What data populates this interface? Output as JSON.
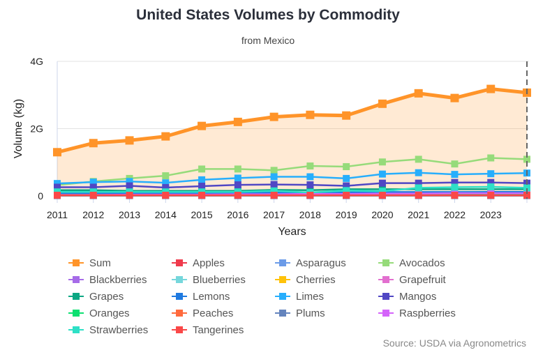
{
  "chart_data": {
    "type": "line",
    "title": "United States Volumes by Commodity",
    "subtitle": "from Mexico",
    "xlabel": "Years",
    "ylabel": "Volume (kg)",
    "ylim": [
      0,
      4000000000
    ],
    "yticks": [
      {
        "value": 0,
        "label": "0"
      },
      {
        "value": 2000000000,
        "label": "2G"
      },
      {
        "value": 4000000000,
        "label": "4G"
      }
    ],
    "x": [
      2011,
      2012,
      2013,
      2014,
      2015,
      2016,
      2017,
      2018,
      2019,
      2020,
      2021,
      2022,
      2023,
      2024
    ],
    "xtick_labels": [
      "2011",
      "2012",
      "2013",
      "2014",
      "2015",
      "2016",
      "2017",
      "2018",
      "2019",
      "2020",
      "2021",
      "2022",
      "2023"
    ],
    "grid": true,
    "legend_placement": "bottom",
    "series": [
      {
        "name": "Sum",
        "color": "#ff9429",
        "area": true,
        "values": [
          1.3,
          1.57,
          1.65,
          1.77,
          2.08,
          2.2,
          2.35,
          2.41,
          2.39,
          2.74,
          3.05,
          2.91,
          3.18,
          3.07
        ]
      },
      {
        "name": "Apples",
        "color": "#ef3a4c",
        "values": [
          0.02,
          0.02,
          0.02,
          0.02,
          0.02,
          0.02,
          0.02,
          0.02,
          0.02,
          0.02,
          0.02,
          0.02,
          0.02,
          0.02
        ]
      },
      {
        "name": "Asparagus",
        "color": "#6b9be8",
        "values": [
          0.1,
          0.1,
          0.1,
          0.1,
          0.11,
          0.11,
          0.11,
          0.11,
          0.12,
          0.12,
          0.12,
          0.12,
          0.12,
          0.12
        ]
      },
      {
        "name": "Avocados",
        "color": "#96db7a",
        "values": [
          0.32,
          0.43,
          0.52,
          0.6,
          0.8,
          0.8,
          0.76,
          0.89,
          0.87,
          1.01,
          1.09,
          0.95,
          1.13,
          1.09
        ]
      },
      {
        "name": "Blackberries",
        "color": "#a66be8",
        "values": [
          0.04,
          0.04,
          0.05,
          0.05,
          0.05,
          0.06,
          0.06,
          0.06,
          0.06,
          0.07,
          0.07,
          0.07,
          0.07,
          0.07
        ]
      },
      {
        "name": "Blueberries",
        "color": "#76d7dc",
        "values": [
          0.02,
          0.02,
          0.03,
          0.03,
          0.04,
          0.05,
          0.06,
          0.07,
          0.08,
          0.09,
          0.1,
          0.11,
          0.12,
          0.12
        ]
      },
      {
        "name": "Cherries",
        "color": "#ffc20a",
        "values": [
          0.01,
          0.01,
          0.01,
          0.01,
          0.01,
          0.01,
          0.01,
          0.01,
          0.01,
          0.01,
          0.01,
          0.01,
          0.01,
          0.01
        ]
      },
      {
        "name": "Grapefruit",
        "color": "#e26fcf",
        "values": [
          0.03,
          0.03,
          0.03,
          0.03,
          0.03,
          0.03,
          0.03,
          0.03,
          0.03,
          0.03,
          0.03,
          0.03,
          0.03,
          0.03
        ]
      },
      {
        "name": "Grapes",
        "color": "#0ba783",
        "values": [
          0.17,
          0.17,
          0.15,
          0.15,
          0.15,
          0.15,
          0.18,
          0.17,
          0.2,
          0.2,
          0.2,
          0.2,
          0.2,
          0.2
        ]
      },
      {
        "name": "Lemons",
        "color": "#1f7ae0",
        "values": [
          0.08,
          0.08,
          0.08,
          0.09,
          0.09,
          0.09,
          0.1,
          0.1,
          0.1,
          0.11,
          0.11,
          0.11,
          0.12,
          0.12
        ]
      },
      {
        "name": "Limes",
        "color": "#27aefc",
        "values": [
          0.37,
          0.41,
          0.43,
          0.39,
          0.48,
          0.53,
          0.57,
          0.57,
          0.52,
          0.65,
          0.69,
          0.64,
          0.66,
          0.68
        ]
      },
      {
        "name": "Mangos",
        "color": "#5047c4",
        "values": [
          0.26,
          0.26,
          0.3,
          0.25,
          0.29,
          0.33,
          0.34,
          0.33,
          0.3,
          0.38,
          0.38,
          0.4,
          0.4,
          0.38
        ]
      },
      {
        "name": "Oranges",
        "color": "#0de071",
        "values": [
          0.03,
          0.03,
          0.03,
          0.03,
          0.03,
          0.03,
          0.03,
          0.03,
          0.04,
          0.04,
          0.05,
          0.05,
          0.05,
          0.05
        ]
      },
      {
        "name": "Peaches",
        "color": "#ff6a3d",
        "values": [
          0.01,
          0.01,
          0.01,
          0.01,
          0.01,
          0.01,
          0.01,
          0.01,
          0.01,
          0.01,
          0.01,
          0.01,
          0.01,
          0.01
        ]
      },
      {
        "name": "Plums",
        "color": "#6484bd",
        "values": [
          0.01,
          0.01,
          0.01,
          0.01,
          0.01,
          0.01,
          0.01,
          0.01,
          0.01,
          0.01,
          0.01,
          0.01,
          0.01,
          0.01
        ]
      },
      {
        "name": "Raspberries",
        "color": "#d463fa",
        "values": [
          0.03,
          0.03,
          0.04,
          0.04,
          0.04,
          0.05,
          0.05,
          0.06,
          0.06,
          0.07,
          0.07,
          0.08,
          0.08,
          0.08
        ]
      },
      {
        "name": "Strawberries",
        "color": "#2ee0c6",
        "values": [
          0.12,
          0.12,
          0.12,
          0.12,
          0.12,
          0.12,
          0.15,
          0.1,
          0.16,
          0.14,
          0.24,
          0.26,
          0.27,
          0.24
        ]
      },
      {
        "name": "Tangerines",
        "color": "#fa4848",
        "values": [
          0.02,
          0.02,
          0.02,
          0.02,
          0.02,
          0.02,
          0.02,
          0.02,
          0.02,
          0.02,
          0.02,
          0.02,
          0.02,
          0.02
        ]
      }
    ],
    "value_unit_note_scale": 1000000000
  },
  "source": "Source: USDA via Agronometrics"
}
